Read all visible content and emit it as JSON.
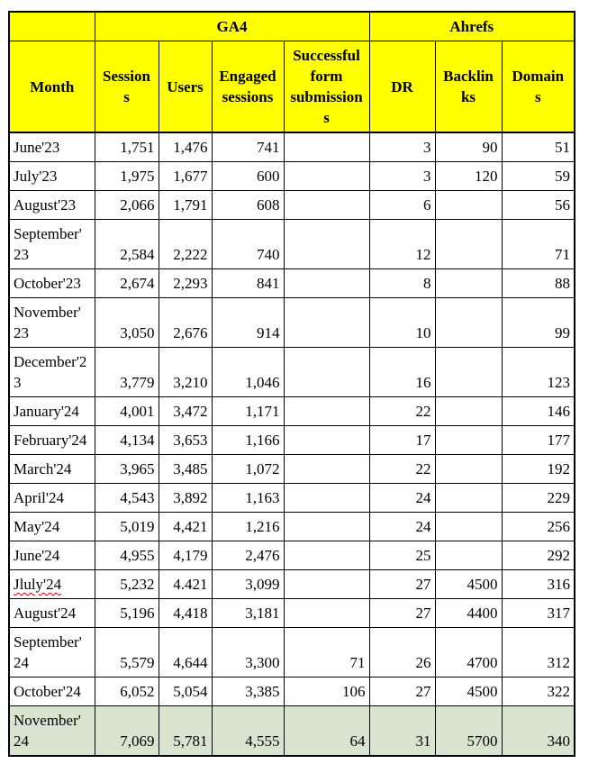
{
  "table": {
    "colors": {
      "header_bg": "#ffff00",
      "highlight_bg": "#d8e4d0",
      "border": "#000000",
      "spellcheck_underline": "#cc0000"
    },
    "col_groups": [
      {
        "label": "",
        "span": 1
      },
      {
        "label": "GA4",
        "span": 4
      },
      {
        "label": "Ahrefs",
        "span": 3
      }
    ],
    "columns": [
      "Month",
      "Session\ns",
      "Users",
      "Engaged\nsessions",
      "Successful\nform\nsubmission\ns",
      "DR",
      "Backlin\nks",
      "Domain\ns"
    ],
    "rows": [
      {
        "month": "June'23",
        "sessions": "1,751",
        "users": "1,476",
        "engaged_sessions": "741",
        "form_submissions": "",
        "dr": "3",
        "backlinks": "90",
        "domains": "51"
      },
      {
        "month": "July'23",
        "sessions": "1,975",
        "users": "1,677",
        "engaged_sessions": "600",
        "form_submissions": "",
        "dr": "3",
        "backlinks": "120",
        "domains": "59"
      },
      {
        "month": "August'23",
        "sessions": "2,066",
        "users": "1,791",
        "engaged_sessions": "608",
        "form_submissions": "",
        "dr": "6",
        "backlinks": "",
        "domains": "56"
      },
      {
        "month": "September'\n23",
        "sessions": "2,584",
        "users": "2,222",
        "engaged_sessions": "740",
        "form_submissions": "",
        "dr": "12",
        "backlinks": "",
        "domains": "71"
      },
      {
        "month": "October'23",
        "sessions": "2,674",
        "users": "2,293",
        "engaged_sessions": "841",
        "form_submissions": "",
        "dr": "8",
        "backlinks": "",
        "domains": "88"
      },
      {
        "month": "November'\n23",
        "sessions": "3,050",
        "users": "2,676",
        "engaged_sessions": "914",
        "form_submissions": "",
        "dr": "10",
        "backlinks": "",
        "domains": "99"
      },
      {
        "month": "December'2\n3",
        "sessions": "3,779",
        "users": "3,210",
        "engaged_sessions": "1,046",
        "form_submissions": "",
        "dr": "16",
        "backlinks": "",
        "domains": "123"
      },
      {
        "month": "January'24",
        "sessions": "4,001",
        "users": "3,472",
        "engaged_sessions": "1,171",
        "form_submissions": "",
        "dr": "22",
        "backlinks": "",
        "domains": "146"
      },
      {
        "month": "February'24",
        "sessions": "4,134",
        "users": "3,653",
        "engaged_sessions": "1,166",
        "form_submissions": "",
        "dr": "17",
        "backlinks": "",
        "domains": "177"
      },
      {
        "month": "March'24",
        "sessions": "3,965",
        "users": "3,485",
        "engaged_sessions": "1,072",
        "form_submissions": "",
        "dr": "22",
        "backlinks": "",
        "domains": "192"
      },
      {
        "month": "April'24",
        "sessions": "4,543",
        "users": "3,892",
        "engaged_sessions": "1,163",
        "form_submissions": "",
        "dr": "24",
        "backlinks": "",
        "domains": "229"
      },
      {
        "month": "May'24",
        "sessions": "5,019",
        "users": "4,421",
        "engaged_sessions": "1,216",
        "form_submissions": "",
        "dr": "24",
        "backlinks": "",
        "domains": "256"
      },
      {
        "month": "June'24",
        "sessions": "4,955",
        "users": "4,179",
        "engaged_sessions": "2,476",
        "form_submissions": "",
        "dr": "25",
        "backlinks": "",
        "domains": "292"
      },
      {
        "month": "Jluly'24",
        "misspelled": true,
        "sessions": "5,232",
        "users": "4.421",
        "engaged_sessions": "3,099",
        "form_submissions": "",
        "dr": "27",
        "backlinks": "4500",
        "domains": "316"
      },
      {
        "month": "August'24",
        "sessions": "5,196",
        "users": "4,418",
        "engaged_sessions": "3,181",
        "form_submissions": "",
        "dr": "27",
        "backlinks": "4400",
        "domains": "317"
      },
      {
        "month": "September'\n24",
        "sessions": "5,579",
        "users": "4,644",
        "engaged_sessions": "3,300",
        "form_submissions": "71",
        "dr": "26",
        "backlinks": "4700",
        "domains": "312"
      },
      {
        "month": "October'24",
        "sessions": "6,052",
        "users": "5,054",
        "engaged_sessions": "3,385",
        "form_submissions": "106",
        "dr": "27",
        "backlinks": "4500",
        "domains": "322"
      },
      {
        "month": "November'\n24",
        "highlighted": true,
        "sessions": "7,069",
        "users": "5,781",
        "engaged_sessions": "4,555",
        "form_submissions": "64",
        "dr": "31",
        "backlinks": "5700",
        "domains": "340"
      }
    ]
  }
}
